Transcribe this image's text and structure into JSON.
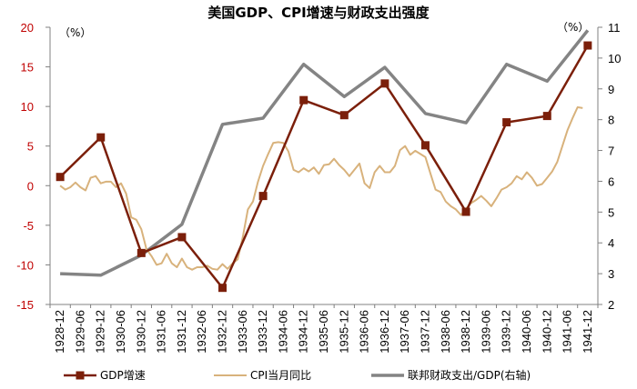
{
  "chart_data": {
    "type": "line",
    "title": "美国GDP、CPI增速与财政支出强度",
    "left_axis": {
      "unit_label": "（%）",
      "range": [
        -15,
        20
      ],
      "ticks": [
        -15,
        -10,
        -5,
        0,
        5,
        10,
        15,
        20
      ],
      "tick_color": "#c00000"
    },
    "right_axis": {
      "unit_label": "（%）",
      "range": [
        2,
        11
      ],
      "ticks": [
        2,
        3,
        4,
        5,
        6,
        7,
        8,
        9,
        10,
        11
      ]
    },
    "x_categories": [
      "1928-12",
      "1929-06",
      "1929-12",
      "1930-06",
      "1930-12",
      "1931-06",
      "1931-12",
      "1932-06",
      "1932-12",
      "1933-06",
      "1933-12",
      "1934-06",
      "1934-12",
      "1935-06",
      "1935-12",
      "1936-06",
      "1936-12",
      "1937-06",
      "1937-12",
      "1938-06",
      "1938-12",
      "1939-06",
      "1939-12",
      "1940-06",
      "1940-12",
      "1941-06",
      "1941-12"
    ],
    "grid": false,
    "legend_position": "bottom",
    "series": [
      {
        "name": "GDP增速",
        "axis": "left",
        "color": "#7b1f0a",
        "marker": "square",
        "points": [
          [
            0,
            1.1
          ],
          [
            2,
            6.1
          ],
          [
            4,
            -8.5
          ],
          [
            6,
            -6.5
          ],
          [
            8,
            -12.9
          ],
          [
            10,
            -1.3
          ],
          [
            12,
            10.8
          ],
          [
            14,
            8.9
          ],
          [
            16,
            12.9
          ],
          [
            18,
            5.1
          ],
          [
            20,
            -3.3
          ],
          [
            22,
            8.0
          ],
          [
            24,
            8.8
          ],
          [
            26,
            17.7
          ]
        ]
      },
      {
        "name": "CPI当月同比",
        "axis": "left",
        "color": "#d8b27c",
        "marker": "none",
        "points": [
          [
            0,
            0
          ],
          [
            0.25,
            -0.5
          ],
          [
            0.5,
            -0.2
          ],
          [
            0.75,
            0.4
          ],
          [
            1,
            -0.2
          ],
          [
            1.25,
            -0.6
          ],
          [
            1.5,
            1.0
          ],
          [
            1.75,
            1.2
          ],
          [
            2,
            0.3
          ],
          [
            2.25,
            0.5
          ],
          [
            2.5,
            0.5
          ],
          [
            2.75,
            -0.2
          ],
          [
            3,
            0.3
          ],
          [
            3.25,
            -1.0
          ],
          [
            3.5,
            -4.0
          ],
          [
            3.75,
            -4.3
          ],
          [
            4,
            -5.5
          ],
          [
            4.25,
            -8.0
          ],
          [
            4.5,
            -8.9
          ],
          [
            4.75,
            -10.0
          ],
          [
            5,
            -9.8
          ],
          [
            5.25,
            -8.6
          ],
          [
            5.5,
            -9.8
          ],
          [
            5.75,
            -10.3
          ],
          [
            6,
            -9.2
          ],
          [
            6.25,
            -10.3
          ],
          [
            6.5,
            -10.6
          ],
          [
            6.75,
            -10.3
          ],
          [
            7,
            -10.3
          ],
          [
            7.25,
            -10.1
          ],
          [
            7.5,
            -10.5
          ],
          [
            7.75,
            -10.6
          ],
          [
            8,
            -9.9
          ],
          [
            8.25,
            -10.5
          ],
          [
            8.5,
            -9.8
          ],
          [
            8.75,
            -9.3
          ],
          [
            9,
            -6.5
          ],
          [
            9.25,
            -3.0
          ],
          [
            9.5,
            -2.0
          ],
          [
            9.75,
            0.5
          ],
          [
            10,
            2.5
          ],
          [
            10.25,
            4.0
          ],
          [
            10.5,
            5.4
          ],
          [
            10.75,
            5.5
          ],
          [
            11,
            5.4
          ],
          [
            11.25,
            4.3
          ],
          [
            11.5,
            2.0
          ],
          [
            11.75,
            1.7
          ],
          [
            12,
            2.2
          ],
          [
            12.25,
            1.8
          ],
          [
            12.5,
            2.3
          ],
          [
            12.75,
            1.5
          ],
          [
            13,
            2.6
          ],
          [
            13.25,
            2.7
          ],
          [
            13.5,
            3.4
          ],
          [
            13.75,
            2.6
          ],
          [
            14,
            2.0
          ],
          [
            14.25,
            1.2
          ],
          [
            14.5,
            2.0
          ],
          [
            14.75,
            2.8
          ],
          [
            15,
            0.3
          ],
          [
            15.25,
            -0.3
          ],
          [
            15.5,
            1.7
          ],
          [
            15.75,
            2.5
          ],
          [
            16,
            1.7
          ],
          [
            16.25,
            1.7
          ],
          [
            16.5,
            2.5
          ],
          [
            16.75,
            4.5
          ],
          [
            17,
            5.0
          ],
          [
            17.25,
            3.9
          ],
          [
            17.5,
            4.4
          ],
          [
            17.75,
            4.0
          ],
          [
            18,
            3.6
          ],
          [
            18.25,
            1.5
          ],
          [
            18.5,
            -0.5
          ],
          [
            18.75,
            -0.8
          ],
          [
            19,
            -2.0
          ],
          [
            19.25,
            -2.6
          ],
          [
            19.5,
            -3.0
          ],
          [
            19.75,
            -3.7
          ],
          [
            20,
            -2.9
          ],
          [
            20.25,
            -2.2
          ],
          [
            20.5,
            -1.8
          ],
          [
            20.75,
            -1.3
          ],
          [
            21,
            -1.9
          ],
          [
            21.25,
            -2.6
          ],
          [
            21.5,
            -1.6
          ],
          [
            21.75,
            -0.5
          ],
          [
            22,
            -0.2
          ],
          [
            22.25,
            0.3
          ],
          [
            22.5,
            1.2
          ],
          [
            22.75,
            0.8
          ],
          [
            23,
            1.7
          ],
          [
            23.25,
            1.0
          ],
          [
            23.5,
            0.0
          ],
          [
            23.75,
            0.2
          ],
          [
            24,
            1.0
          ],
          [
            24.25,
            1.8
          ],
          [
            24.5,
            3.0
          ],
          [
            24.75,
            5.0
          ],
          [
            25,
            7.0
          ],
          [
            25.25,
            8.5
          ],
          [
            25.5,
            9.9
          ],
          [
            25.75,
            9.8
          ]
        ]
      },
      {
        "name": "联邦财政支出/GDP(右轴)",
        "axis": "right",
        "color": "#848484",
        "marker": "none",
        "points": [
          [
            0,
            3.0
          ],
          [
            2,
            2.95
          ],
          [
            4,
            3.6
          ],
          [
            6,
            4.6
          ],
          [
            8,
            7.85
          ],
          [
            10,
            8.05
          ],
          [
            12,
            9.8
          ],
          [
            14,
            8.75
          ],
          [
            16,
            9.7
          ],
          [
            18,
            8.2
          ],
          [
            20,
            7.9
          ],
          [
            22,
            9.8
          ],
          [
            24,
            9.25
          ],
          [
            26,
            10.9
          ]
        ]
      }
    ]
  }
}
